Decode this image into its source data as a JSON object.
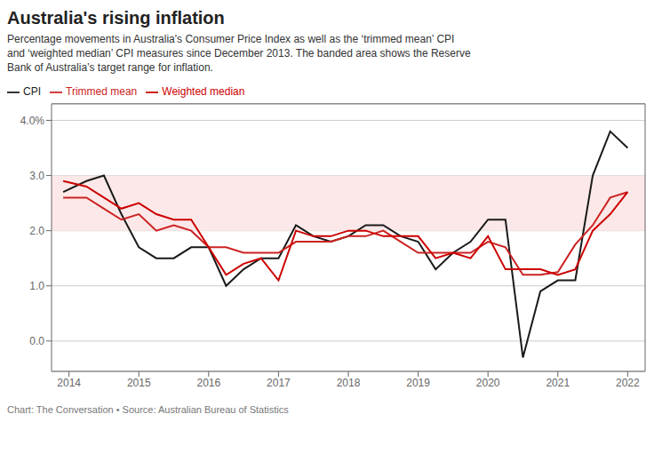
{
  "chart_data": {
    "type": "line",
    "title": "Australia's rising inflation",
    "subtitle": "Percentage movements in Australia's Consumer Price Index as well as the ‘trimmed mean’ CPI\nand ‘weighted median’ CPI measures since December 2013. The banded area shows the Reserve\nBank of Australia’s target range for inflation.",
    "footnote": "Chart: The Conversation • Source: Australian Bureau of Statistics",
    "x": [
      2013.917,
      2014.25,
      2014.5,
      2014.75,
      2015.0,
      2015.25,
      2015.5,
      2015.75,
      2016.0,
      2016.25,
      2016.5,
      2016.75,
      2017.0,
      2017.25,
      2017.5,
      2017.75,
      2018.0,
      2018.25,
      2018.5,
      2018.75,
      2019.0,
      2019.25,
      2019.5,
      2019.75,
      2020.0,
      2020.25,
      2020.5,
      2020.75,
      2021.0,
      2021.25,
      2021.5,
      2021.75,
      2022.0
    ],
    "series": [
      {
        "name": "CPI",
        "color": "#1a1a1a",
        "values": [
          2.7,
          2.9,
          3.0,
          2.3,
          1.7,
          1.5,
          1.5,
          1.7,
          1.7,
          1.0,
          1.3,
          1.5,
          1.5,
          2.1,
          1.9,
          1.8,
          1.9,
          2.1,
          2.1,
          1.9,
          1.8,
          1.3,
          1.6,
          1.8,
          2.2,
          2.2,
          -0.3,
          0.9,
          1.1,
          1.1,
          3.0,
          3.8,
          3.5
        ]
      },
      {
        "name": "Trimmed mean",
        "color": "#cc2222",
        "values": [
          2.6,
          2.6,
          2.4,
          2.2,
          2.3,
          2.0,
          2.1,
          2.0,
          1.7,
          1.7,
          1.6,
          1.6,
          1.6,
          1.8,
          1.8,
          1.8,
          1.9,
          1.9,
          2.0,
          1.8,
          1.6,
          1.6,
          1.6,
          1.6,
          1.8,
          1.7,
          1.2,
          1.2,
          1.25,
          1.75,
          2.1,
          2.6,
          2.7
        ]
      },
      {
        "name": "Weighted median",
        "color": "#cc0000",
        "values": [
          2.9,
          2.8,
          2.6,
          2.4,
          2.5,
          2.3,
          2.2,
          2.2,
          1.7,
          1.2,
          1.4,
          1.5,
          1.1,
          2.0,
          1.9,
          1.9,
          2.0,
          2.0,
          1.9,
          1.9,
          1.9,
          1.5,
          1.6,
          1.5,
          1.9,
          1.3,
          1.3,
          1.3,
          1.2,
          1.3,
          2.0,
          2.3,
          2.7
        ]
      }
    ],
    "xlim": [
      2013.75,
      2022.25
    ],
    "xticks": [
      2014,
      2015,
      2016,
      2017,
      2018,
      2019,
      2020,
      2021,
      2022
    ],
    "ylim": [
      -0.55,
      4.3
    ],
    "yticks": [
      {
        "value": 0.0,
        "label": "0.0"
      },
      {
        "value": 1.0,
        "label": "1.0"
      },
      {
        "value": 2.0,
        "label": "2.0"
      },
      {
        "value": 3.0,
        "label": "3.0"
      },
      {
        "value": 4.0,
        "label": "4.0%"
      }
    ],
    "target_band": {
      "range": [
        2.0,
        3.0
      ],
      "color": "#fce8e8"
    },
    "grid": true,
    "legend": "top left"
  }
}
